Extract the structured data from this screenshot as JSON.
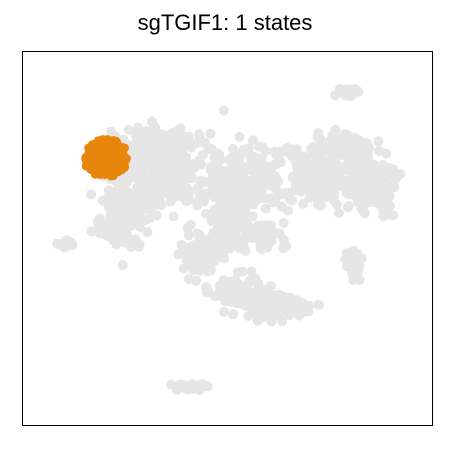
{
  "title": "sgTGIF1: 1 states",
  "chart_data": {
    "type": "scatter",
    "title": "sgTGIF1: 1 states",
    "xlabel": "",
    "ylabel": "",
    "axes_visible": false,
    "grid": false,
    "legend": "none",
    "background_color": "#e6e6e6",
    "highlight_color": "#e8860b",
    "series": [
      {
        "role": "background",
        "color": "#e6e6e6"
      },
      {
        "role": "highlighted-state",
        "color": "#e8860b",
        "state_count": 1
      }
    ]
  }
}
